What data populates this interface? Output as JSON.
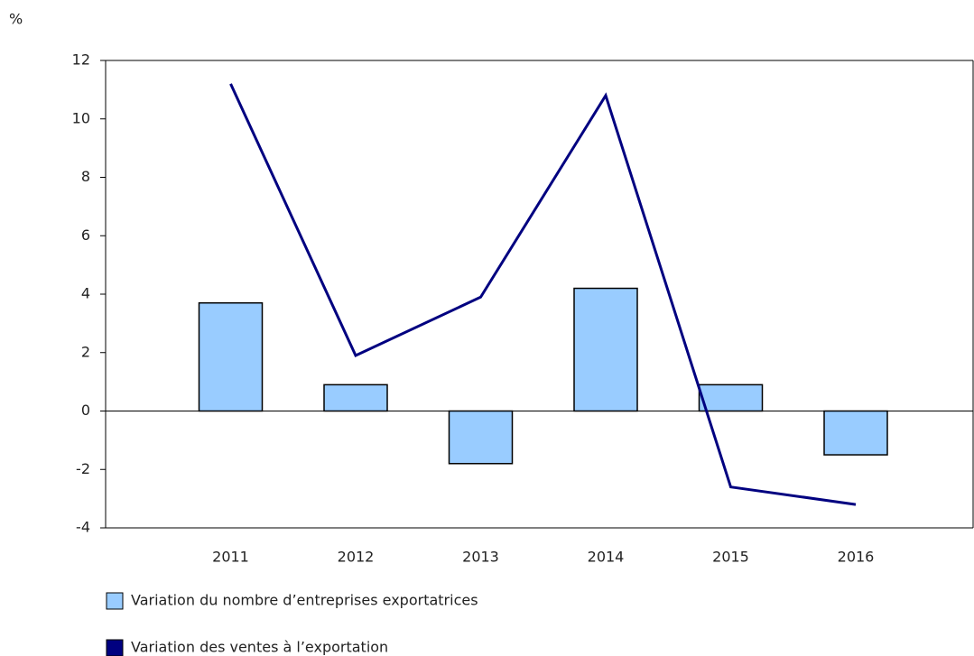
{
  "chart_data": {
    "type": "bar",
    "y_unit": "%",
    "categories": [
      "2011",
      "2012",
      "2013",
      "2014",
      "2015",
      "2016"
    ],
    "series": [
      {
        "name": "Variation du nombre d’entreprises exportatrices",
        "type": "bar",
        "color": "#99ccff",
        "values": [
          3.7,
          0.9,
          -1.8,
          4.2,
          0.9,
          -1.5
        ]
      },
      {
        "name": "Variation des ventes à l’exportation",
        "type": "line",
        "color": "#000080",
        "values": [
          11.2,
          1.9,
          3.9,
          10.8,
          -2.6,
          -3.2
        ]
      }
    ],
    "ylim": [
      -4,
      12
    ],
    "yticks": [
      -4,
      -2,
      0,
      2,
      4,
      6,
      8,
      10,
      12
    ]
  }
}
